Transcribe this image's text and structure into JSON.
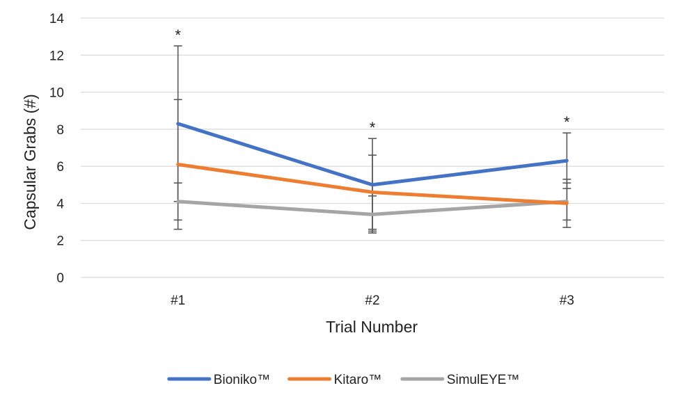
{
  "chart_data": {
    "type": "line",
    "title": "",
    "xlabel": "Trial Number",
    "ylabel": "Capsular Grabs (#)",
    "categories": [
      "#1",
      "#2",
      "#3"
    ],
    "ylim": [
      0,
      14
    ],
    "yticks": [
      0,
      2,
      4,
      6,
      8,
      10,
      12,
      14
    ],
    "grid": "horizontal",
    "legend_position": "bottom",
    "series": [
      {
        "name": "Bioniko™",
        "color": "#4472C4",
        "values": [
          8.3,
          5.0,
          6.3
        ],
        "error": [
          4.2,
          2.5,
          1.5
        ]
      },
      {
        "name": "Kitaro™",
        "color": "#ED7D31",
        "values": [
          6.1,
          4.6,
          4.0
        ],
        "error": [
          3.5,
          2.0,
          1.3
        ]
      },
      {
        "name": "SimulEYE™",
        "color": "#A5A5A5",
        "values": [
          4.1,
          3.4,
          4.1
        ],
        "error": [
          1.0,
          1.0,
          1.0
        ]
      }
    ],
    "annotations": [
      {
        "category": "#1",
        "text": "*"
      },
      {
        "category": "#2",
        "text": "*"
      },
      {
        "category": "#3",
        "text": "*"
      }
    ]
  }
}
